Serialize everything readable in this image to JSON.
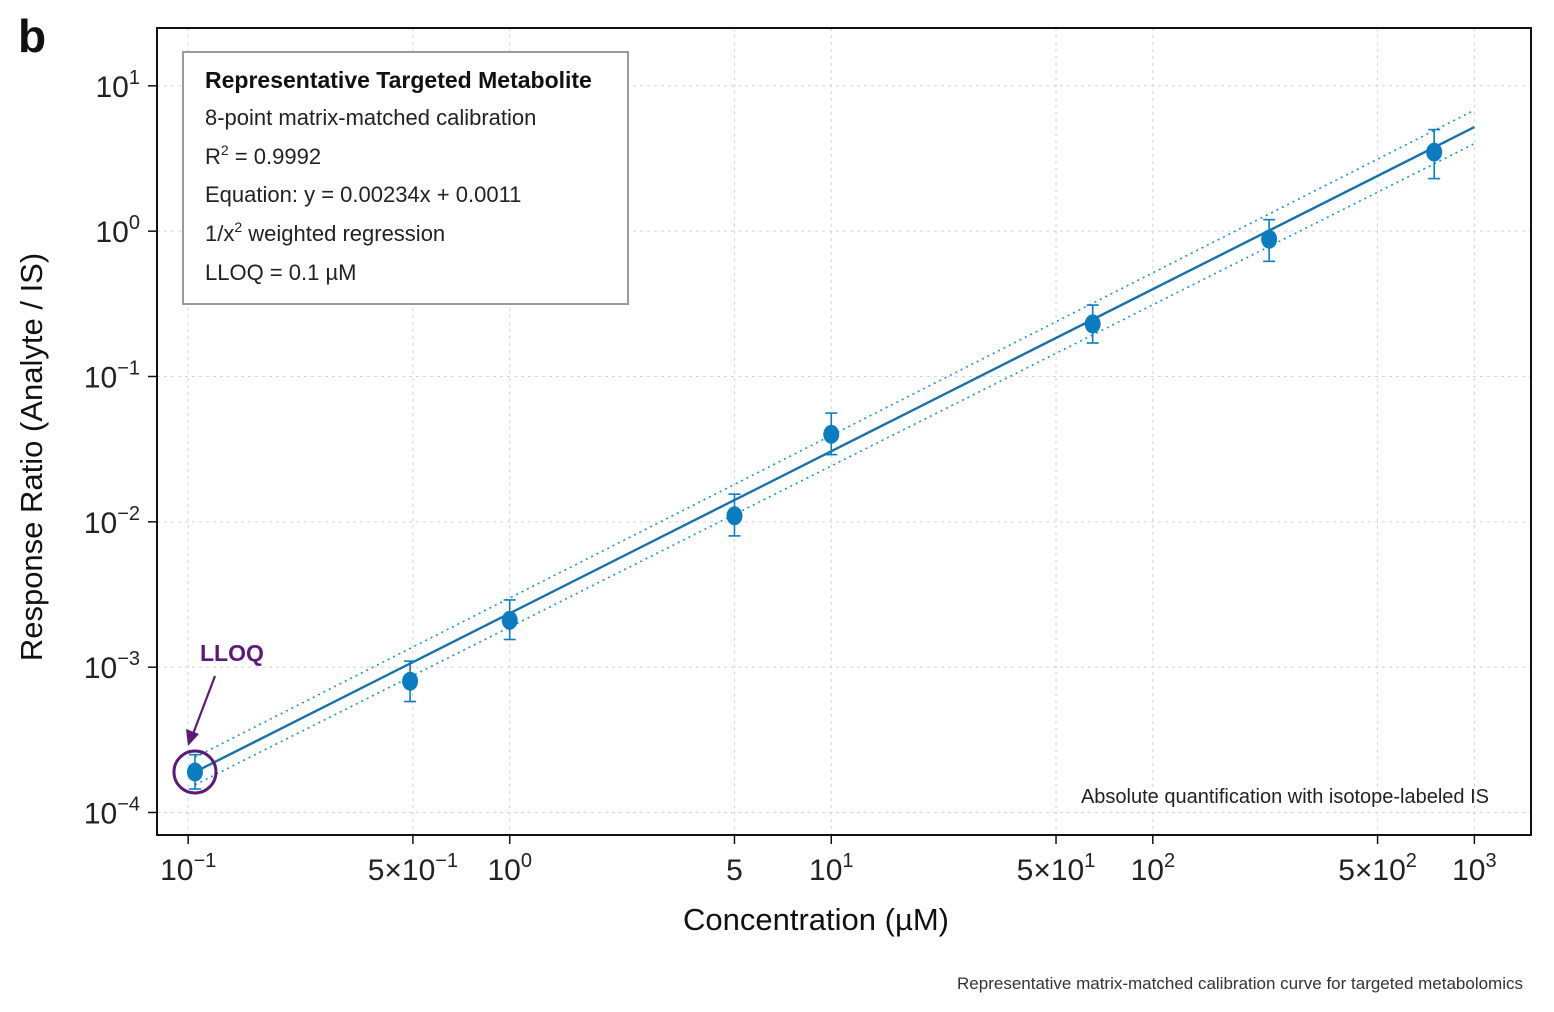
{
  "panel_label": "b",
  "caption": "Representative matrix-matched calibration curve for targeted metabolomics",
  "colors": {
    "series": "#0b7cbf",
    "fit": "#1772a8",
    "band": "#1f8fd0",
    "lloq": "#5b1a78",
    "grid": "#d4d4d4",
    "axis": "#111111"
  },
  "info_box": {
    "title": "Representative Targeted Metabolite",
    "lines": [
      {
        "base": "8-point matrix-matched calibration",
        "sup": "",
        "rest": ""
      },
      {
        "base": "R",
        "sup": "2",
        "rest": " = 0.9992"
      },
      {
        "base": "Equation: y = 0.00234x + 0.0011",
        "sup": "",
        "rest": ""
      },
      {
        "base": "1/x",
        "sup": "2",
        "rest": " weighted regression"
      },
      {
        "base": "LLOQ = 0.1 µM",
        "sup": "",
        "rest": ""
      }
    ]
  },
  "chart_data": {
    "type": "scatter",
    "xlabel": "Concentration (µM)",
    "ylabel": "Response Ratio (Analyte / IS)",
    "xscale": "log",
    "yscale": "log",
    "xlim": [
      0.08,
      1500
    ],
    "ylim": [
      7e-05,
      25
    ],
    "grid": true,
    "x_ticks": [
      {
        "value": 0.1,
        "base": "10",
        "exp": "−1"
      },
      {
        "value": 0.5,
        "base": "5×10",
        "exp": "−1"
      },
      {
        "value": 1,
        "base": "10",
        "exp": "0"
      },
      {
        "value": 5,
        "base": "5",
        "exp": ""
      },
      {
        "value": 10,
        "base": "10",
        "exp": "1"
      },
      {
        "value": 50,
        "base": "5×10",
        "exp": "1"
      },
      {
        "value": 100,
        "base": "10",
        "exp": "2"
      },
      {
        "value": 500,
        "base": "5×10",
        "exp": "2"
      },
      {
        "value": 1000,
        "base": "10",
        "exp": "3"
      }
    ],
    "y_ticks": [
      {
        "value": 0.0001,
        "base": "10",
        "exp": "−4"
      },
      {
        "value": 0.001,
        "base": "10",
        "exp": "−3"
      },
      {
        "value": 0.01,
        "base": "10",
        "exp": "−2"
      },
      {
        "value": 0.1,
        "base": "10",
        "exp": "−1"
      },
      {
        "value": 1,
        "base": "10",
        "exp": "0"
      },
      {
        "value": 10,
        "base": "10",
        "exp": "1"
      }
    ],
    "series": [
      {
        "points": [
          {
            "x": 0.105,
            "y": 0.00019,
            "yerr_low": 0.000145,
            "yerr_high": 0.00025
          },
          {
            "x": 0.49,
            "y": 0.0008,
            "yerr_low": 0.00058,
            "yerr_high": 0.0011
          },
          {
            "x": 1.0,
            "y": 0.0021,
            "yerr_low": 0.00155,
            "yerr_high": 0.0029
          },
          {
            "x": 5.0,
            "y": 0.011,
            "yerr_low": 0.008,
            "yerr_high": 0.0155
          },
          {
            "x": 10.0,
            "y": 0.04,
            "yerr_low": 0.029,
            "yerr_high": 0.056
          },
          {
            "x": 65.0,
            "y": 0.23,
            "yerr_low": 0.17,
            "yerr_high": 0.31
          },
          {
            "x": 230.0,
            "y": 0.88,
            "yerr_low": 0.62,
            "yerr_high": 1.2
          },
          {
            "x": 750.0,
            "y": 3.5,
            "yerr_low": 2.3,
            "yerr_high": 5.0
          }
        ]
      }
    ],
    "fit_line": {
      "x": [
        0.105,
        1000
      ],
      "y": [
        0.00019,
        5.2
      ]
    },
    "fit_band_upper": {
      "x": [
        0.105,
        1000
      ],
      "y": [
        0.00024,
        6.8
      ]
    },
    "fit_band_lower": {
      "x": [
        0.105,
        1000
      ],
      "y": [
        0.000155,
        4.0
      ]
    },
    "annotations": [
      {
        "text": "LLOQ",
        "x": 0.105,
        "y": 0.00019
      },
      {
        "text": "Absolute quantification with isotope-labeled IS"
      }
    ]
  }
}
